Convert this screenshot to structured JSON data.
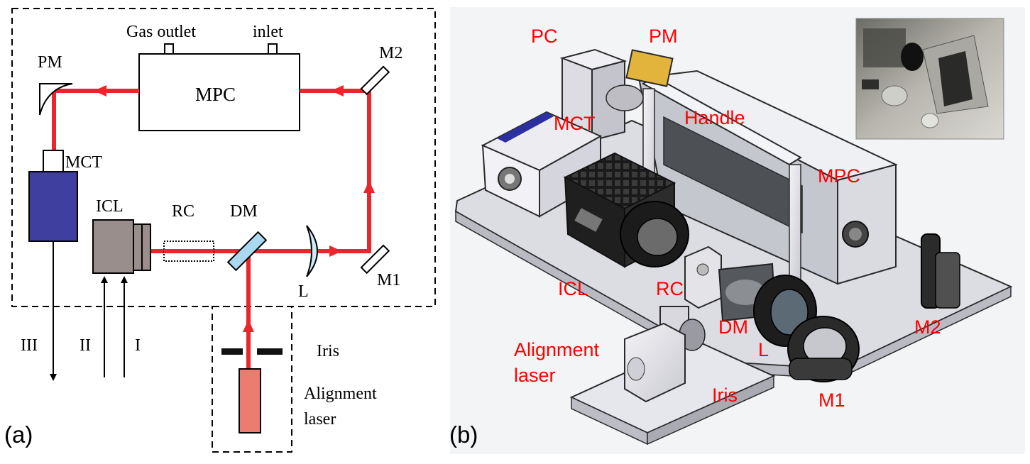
{
  "colors": {
    "beam": "#e8262b",
    "mct_body": "#3f3fa0",
    "icl_body": "#9a8e8c",
    "dm_fill": "#a9d8ef",
    "lens_fill": "#cde9f6",
    "laser_fill": "#ec7b70",
    "label_red": "#ff0000"
  },
  "panel_a": {
    "tag": "(a)",
    "gas_outlet": "Gas outlet",
    "inlet": "inlet",
    "mpc": "MPC",
    "pm": "PM",
    "m2": "M2",
    "mct": "MCT",
    "icl": "ICL",
    "rc": "RC",
    "dm": "DM",
    "l": "L",
    "m1": "M1",
    "iris": "Iris",
    "alignment_line1": "Alignment",
    "alignment_line2": "laser",
    "roman_3": "III",
    "roman_2": "II",
    "roman_1": "I"
  },
  "panel_b": {
    "tag": "(b)",
    "pc": "PC",
    "pm": "PM",
    "mct": "MCT",
    "handle": "Handle",
    "mpc": "MPC",
    "icl": "ICL",
    "rc": "RC",
    "dm": "DM",
    "l": "L",
    "m1": "M1",
    "m2": "M2",
    "iris": "Iris",
    "alignment_line1": "Alignment",
    "alignment_line2": "laser"
  }
}
